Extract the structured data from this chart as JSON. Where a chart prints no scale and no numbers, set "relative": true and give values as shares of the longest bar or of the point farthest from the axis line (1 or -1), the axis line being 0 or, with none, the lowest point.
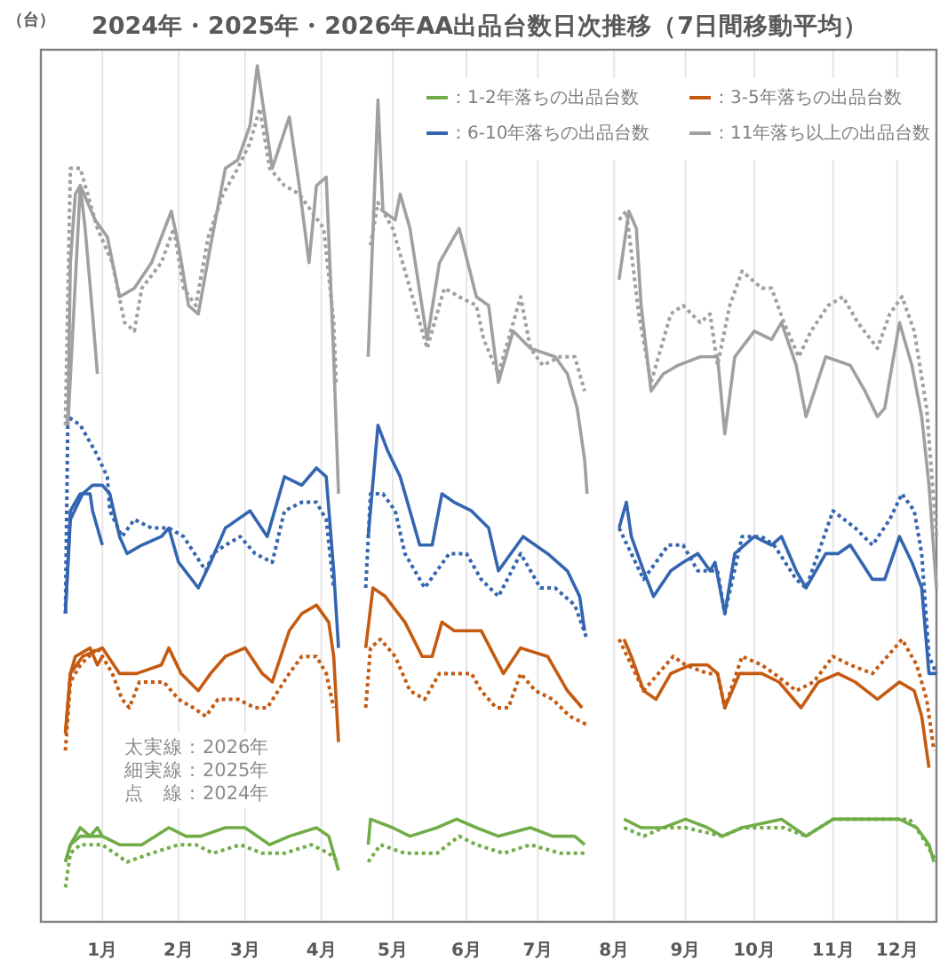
{
  "chart_data": {
    "type": "line",
    "title": "2024年・2025年・2026年AA出品台数日次推移（7日間移動平均）",
    "ylabel": "（台）",
    "relative": true,
    "xlim": [
      "--01-01",
      "--12-31"
    ],
    "xticks": [
      {
        "value": "--01-26",
        "label": "1月"
      },
      {
        "value": "--02-26",
        "label": "2月"
      },
      {
        "value": "--03-25",
        "label": "3月"
      },
      {
        "value": "--04-25",
        "label": "4月"
      },
      {
        "value": "--05-24",
        "label": "5月"
      },
      {
        "value": "--06-23",
        "label": "6月"
      },
      {
        "value": "--07-22",
        "label": "7月"
      },
      {
        "value": "--08-22",
        "label": "8月"
      },
      {
        "value": "--09-20",
        "label": "9月"
      },
      {
        "value": "--10-18",
        "label": "10月"
      },
      {
        "value": "--11-19",
        "label": "11月"
      },
      {
        "value": "--12-15",
        "label": "12月"
      }
    ],
    "grid": "x",
    "legend": "top right",
    "marker": "none",
    "annotations": [
      "太実線：2026年",
      "細実線：2025年",
      "点　線：2024年"
    ],
    "series": [
      {
        "name": "：1-2年落ちの出品台数",
        "color": "#70ad47",
        "line_style": "solid",
        "x": [
          "--01-11",
          "--01-13",
          "--01-17",
          "--01-26",
          "--02-02",
          "--02-11",
          "--02-22",
          "--03-01",
          "--03-07",
          "--03-17",
          "--03-25",
          "--04-04",
          "--04-12",
          "--04-23",
          "--04-28",
          "--05-02"
        ],
        "values": [
          0.07,
          0.09,
          0.1,
          0.1,
          0.09,
          0.09,
          0.11,
          0.1,
          0.1,
          0.11,
          0.11,
          0.09,
          0.1,
          0.11,
          0.1,
          0.06
        ]
      },
      {
        "name": "：3-5年落ちの出品台数",
        "color": "#c55a11",
        "line_style": "solid",
        "x": [
          "--01-11",
          "--01-13",
          "--01-18",
          "--01-26",
          "--02-02",
          "--02-09",
          "--02-19",
          "--02-22",
          "--02-27",
          "--03-06",
          "--03-11",
          "--03-17",
          "--03-25",
          "--04-01",
          "--04-05",
          "--04-12",
          "--04-17",
          "--04-23",
          "--04-28",
          "--04-30",
          "--05-02"
        ],
        "values": [
          0.22,
          0.29,
          0.31,
          0.32,
          0.29,
          0.29,
          0.3,
          0.32,
          0.29,
          0.27,
          0.29,
          0.31,
          0.32,
          0.29,
          0.28,
          0.34,
          0.36,
          0.37,
          0.35,
          0.31,
          0.21
        ]
      },
      {
        "name": "：6-10年落ちの出品台数",
        "color": "#3465b0",
        "line_style": "solid",
        "x": [
          "--01-11",
          "--01-13",
          "--01-18",
          "--01-22",
          "--01-26",
          "--01-29",
          "--02-02",
          "--02-05",
          "--02-11",
          "--02-19",
          "--02-22",
          "--02-26",
          "--03-06",
          "--03-11",
          "--03-17",
          "--03-27",
          "--04-03",
          "--04-08",
          "--04-10",
          "--04-17",
          "--04-23",
          "--04-27",
          "--04-30",
          "--05-02"
        ],
        "values": [
          0.36,
          0.47,
          0.5,
          0.51,
          0.51,
          0.5,
          0.45,
          0.43,
          0.44,
          0.45,
          0.46,
          0.42,
          0.39,
          0.42,
          0.46,
          0.48,
          0.45,
          0.5,
          0.52,
          0.51,
          0.53,
          0.52,
          0.41,
          0.32
        ]
      },
      {
        "name": "：11年落ち以上の出品台数",
        "color": "#a0a0a0",
        "line_style": "solid",
        "x": [
          "--01-12",
          "--01-17",
          "--01-23",
          "--01-28",
          "--02-02",
          "--02-08",
          "--02-15",
          "--02-23",
          "--02-26",
          "--03-02",
          "--03-06",
          "--03-11",
          "--03-17",
          "--03-22",
          "--03-27",
          "--03-30",
          "--04-05",
          "--04-12",
          "--04-16",
          "--04-20",
          "--04-23",
          "--04-27",
          "--04-30",
          "--05-02"
        ],
        "values": [
          0.58,
          0.86,
          0.82,
          0.8,
          0.73,
          0.74,
          0.77,
          0.83,
          0.79,
          0.72,
          0.71,
          0.79,
          0.88,
          0.89,
          0.93,
          1.0,
          0.88,
          0.94,
          0.86,
          0.77,
          0.86,
          0.87,
          0.66,
          0.5
        ]
      },
      {
        "color": "#70ad47",
        "line_style": "solid",
        "x": [
          "--05-14",
          "--05-15",
          "--05-24",
          "--05-31",
          "--06-11",
          "--06-19",
          "--06-27",
          "--07-06",
          "--07-19",
          "--07-28",
          "--08-06",
          "--08-10"
        ],
        "values": [
          0.09,
          0.12,
          0.11,
          0.1,
          0.11,
          0.12,
          0.11,
          0.1,
          0.11,
          0.1,
          0.1,
          0.09
        ]
      },
      {
        "color": "#70ad47",
        "line_style": "solid",
        "x": [
          "--08-26",
          "--09-02",
          "--09-11",
          "--09-20",
          "--09-29",
          "--10-05",
          "--10-13",
          "--10-29",
          "--11-08",
          "--11-19",
          "--11-26",
          "--12-07",
          "--12-16",
          "--12-23",
          "--12-28",
          "--12-30"
        ],
        "values": [
          0.12,
          0.11,
          0.11,
          0.12,
          0.11,
          0.1,
          0.11,
          0.12,
          0.1,
          0.12,
          0.12,
          0.12,
          0.12,
          0.11,
          0.09,
          0.07
        ]
      },
      {
        "color": "#c55a11",
        "line_style": "solid",
        "x": [
          "--05-13",
          "--05-16",
          "--05-21",
          "--05-29",
          "--06-05",
          "--06-09",
          "--06-13",
          "--06-18",
          "--06-24",
          "--06-29",
          "--07-08",
          "--07-15",
          "--07-26",
          "--08-03",
          "--08-09"
        ],
        "values": [
          0.32,
          0.39,
          0.38,
          0.35,
          0.31,
          0.31,
          0.35,
          0.34,
          0.34,
          0.34,
          0.29,
          0.32,
          0.31,
          0.27,
          0.25
        ]
      },
      {
        "color": "#c55a11",
        "line_style": "solid",
        "x": [
          "--08-26",
          "--08-29",
          "--09-03",
          "--09-08",
          "--09-14",
          "--09-22",
          "--09-29",
          "--10-03",
          "--10-06",
          "--10-12",
          "--10-21",
          "--10-28",
          "--11-06",
          "--11-13",
          "--11-21",
          "--11-28",
          "--12-07",
          "--12-16",
          "--12-22",
          "--12-25",
          "--12-28"
        ],
        "values": [
          0.33,
          0.31,
          0.27,
          0.26,
          0.29,
          0.3,
          0.3,
          0.29,
          0.25,
          0.29,
          0.29,
          0.28,
          0.25,
          0.28,
          0.29,
          0.28,
          0.26,
          0.28,
          0.27,
          0.24,
          0.18
        ]
      },
      {
        "color": "#3465b0",
        "line_style": "solid",
        "x": [
          "--05-14",
          "--05-18",
          "--05-22",
          "--05-27",
          "--06-04",
          "--06-09",
          "--06-13",
          "--06-18",
          "--06-25",
          "--07-02",
          "--07-06",
          "--07-16",
          "--07-26",
          "--08-03",
          "--08-08",
          "--08-10"
        ],
        "values": [
          0.45,
          0.58,
          0.55,
          0.52,
          0.44,
          0.44,
          0.5,
          0.49,
          0.48,
          0.46,
          0.41,
          0.45,
          0.43,
          0.41,
          0.38,
          0.34
        ]
      },
      {
        "color": "#3465b0",
        "line_style": "solid",
        "x": [
          "--08-24",
          "--08-27",
          "--08-29",
          "--09-03",
          "--09-07",
          "--09-14",
          "--09-19",
          "--09-25",
          "--09-30",
          "--10-02",
          "--10-06",
          "--10-10",
          "--10-18",
          "--10-25",
          "--10-29",
          "--11-04",
          "--11-08",
          "--11-16",
          "--11-21",
          "--11-26",
          "--12-05",
          "--12-10",
          "--12-16",
          "--12-21",
          "--12-25",
          "--12-28",
          "--12-31"
        ],
        "values": [
          0.46,
          0.49,
          0.45,
          0.41,
          0.38,
          0.41,
          0.42,
          0.43,
          0.41,
          0.42,
          0.36,
          0.43,
          0.45,
          0.44,
          0.45,
          0.41,
          0.39,
          0.43,
          0.43,
          0.44,
          0.4,
          0.4,
          0.45,
          0.42,
          0.39,
          0.29,
          0.29
        ]
      },
      {
        "color": "#a0a0a0",
        "line_style": "solid",
        "x": [
          "--05-14",
          "--05-18",
          "--05-20",
          "--05-25",
          "--05-27",
          "--05-31",
          "--06-07",
          "--06-12",
          "--06-16",
          "--06-20",
          "--06-27",
          "--07-02",
          "--07-06",
          "--07-12",
          "--07-19",
          "--07-29",
          "--08-03",
          "--08-07",
          "--08-10",
          "--08-11"
        ],
        "values": [
          0.66,
          0.96,
          0.83,
          0.82,
          0.85,
          0.81,
          0.68,
          0.77,
          0.79,
          0.81,
          0.73,
          0.72,
          0.63,
          0.69,
          0.67,
          0.66,
          0.64,
          0.6,
          0.54,
          0.5
        ]
      },
      {
        "color": "#a0a0a0",
        "line_style": "solid",
        "x": [
          "--08-24",
          "--08-28",
          "--08-31",
          "--09-02",
          "--09-06",
          "--09-11",
          "--09-17",
          "--09-26",
          "--10-03",
          "--10-06",
          "--10-10",
          "--10-18",
          "--10-25",
          "--10-29",
          "--11-04",
          "--11-08",
          "--11-16",
          "--11-26",
          "--12-02",
          "--12-07",
          "--12-10",
          "--12-16",
          "--12-21",
          "--12-25",
          "--12-28",
          "--12-31"
        ],
        "values": [
          0.75,
          0.83,
          0.81,
          0.72,
          0.62,
          0.64,
          0.65,
          0.66,
          0.66,
          0.57,
          0.66,
          0.69,
          0.68,
          0.7,
          0.65,
          0.59,
          0.66,
          0.65,
          0.62,
          0.59,
          0.6,
          0.7,
          0.65,
          0.59,
          0.51,
          0.39
        ]
      },
      {
        "color": "#70ad47",
        "line_style": "dotted",
        "x": [
          "--01-11",
          "--01-13",
          "--01-17",
          "--01-26",
          "--02-05",
          "--02-15",
          "--02-26",
          "--03-05",
          "--03-12",
          "--03-23",
          "--04-01",
          "--04-10",
          "--04-21",
          "--04-28",
          "--05-02"
        ],
        "values": [
          0.04,
          0.08,
          0.09,
          0.09,
          0.07,
          0.08,
          0.09,
          0.09,
          0.08,
          0.09,
          0.08,
          0.08,
          0.09,
          0.08,
          0.07
        ]
      },
      {
        "color": "#70ad47",
        "line_style": "dotted",
        "x": [
          "--05-14",
          "--05-19",
          "--05-29",
          "--06-11",
          "--06-20",
          "--06-27",
          "--07-08",
          "--07-19",
          "--07-31",
          "--08-10"
        ],
        "values": [
          0.07,
          0.09,
          0.08,
          0.08,
          0.1,
          0.09,
          0.08,
          0.09,
          0.08,
          0.08
        ]
      },
      {
        "color": "#70ad47",
        "line_style": "dotted",
        "x": [
          "--08-26",
          "--09-03",
          "--09-11",
          "--09-20",
          "--10-05",
          "--10-13",
          "--10-30",
          "--11-08",
          "--11-19",
          "--11-28",
          "--12-12",
          "--12-20",
          "--12-25",
          "--12-31"
        ],
        "values": [
          0.11,
          0.1,
          0.11,
          0.11,
          0.1,
          0.11,
          0.11,
          0.1,
          0.12,
          0.12,
          0.12,
          0.12,
          0.1,
          0.07
        ]
      },
      {
        "color": "#c55a11",
        "line_style": "dotted",
        "x": [
          "--01-11",
          "--01-13",
          "--01-17",
          "--01-24",
          "--01-30",
          "--02-03",
          "--02-06",
          "--02-10",
          "--02-20",
          "--02-26",
          "--03-04",
          "--03-09",
          "--03-14",
          "--03-22",
          "--03-29",
          "--04-03",
          "--04-12",
          "--04-17",
          "--04-23",
          "--04-27",
          "--04-30"
        ],
        "values": [
          0.2,
          0.28,
          0.3,
          0.32,
          0.29,
          0.26,
          0.25,
          0.28,
          0.28,
          0.26,
          0.25,
          0.24,
          0.26,
          0.26,
          0.25,
          0.25,
          0.29,
          0.31,
          0.31,
          0.29,
          0.25
        ]
      },
      {
        "color": "#c55a11",
        "line_style": "dotted",
        "x": [
          "--05-13",
          "--05-15",
          "--05-19",
          "--05-25",
          "--05-31",
          "--06-06",
          "--06-12",
          "--06-20",
          "--06-25",
          "--06-29",
          "--07-05",
          "--07-10",
          "--07-15",
          "--07-21",
          "--07-28",
          "--08-04",
          "--08-11"
        ],
        "values": [
          0.25,
          0.32,
          0.33,
          0.31,
          0.27,
          0.26,
          0.29,
          0.29,
          0.29,
          0.27,
          0.25,
          0.25,
          0.29,
          0.27,
          0.26,
          0.24,
          0.23
        ]
      },
      {
        "color": "#c55a11",
        "line_style": "dotted",
        "x": [
          "--08-24",
          "--08-29",
          "--09-03",
          "--09-09",
          "--09-15",
          "--09-20",
          "--09-29",
          "--10-03",
          "--10-06",
          "--10-13",
          "--10-21",
          "--10-26",
          "--11-04",
          "--11-11",
          "--11-19",
          "--11-26",
          "--12-05",
          "--12-14",
          "--12-17",
          "--12-23",
          "--12-27",
          "--12-30"
        ],
        "values": [
          0.33,
          0.3,
          0.27,
          0.29,
          0.31,
          0.3,
          0.29,
          0.29,
          0.25,
          0.31,
          0.3,
          0.29,
          0.27,
          0.28,
          0.31,
          0.3,
          0.29,
          0.32,
          0.33,
          0.3,
          0.26,
          0.2
        ]
      },
      {
        "color": "#3465b0",
        "line_style": "dotted",
        "x": [
          "--01-11",
          "--01-12",
          "--01-17",
          "--01-23",
          "--01-28",
          "--01-29",
          "--02-03",
          "--02-08",
          "--02-15",
          "--02-22",
          "--02-28",
          "--03-09",
          "--03-12",
          "--03-17",
          "--03-23",
          "--03-29",
          "--04-05",
          "--04-10",
          "--04-17",
          "--04-23",
          "--04-27",
          "--04-30"
        ],
        "values": [
          0.36,
          0.59,
          0.58,
          0.55,
          0.52,
          0.48,
          0.45,
          0.47,
          0.46,
          0.46,
          0.45,
          0.41,
          0.43,
          0.44,
          0.45,
          0.43,
          0.42,
          0.48,
          0.49,
          0.49,
          0.47,
          0.39
        ]
      },
      {
        "color": "#3465b0",
        "line_style": "dotted",
        "x": [
          "--05-13",
          "--05-15",
          "--05-20",
          "--05-25",
          "--05-29",
          "--06-06",
          "--06-11",
          "--06-16",
          "--06-23",
          "--06-29",
          "--07-06",
          "--07-15",
          "--07-23",
          "--07-29",
          "--08-06",
          "--08-11"
        ],
        "values": [
          0.39,
          0.5,
          0.5,
          0.48,
          0.43,
          0.39,
          0.41,
          0.43,
          0.43,
          0.4,
          0.38,
          0.43,
          0.39,
          0.39,
          0.37,
          0.33
        ]
      },
      {
        "color": "#3465b0",
        "line_style": "dotted",
        "x": [
          "--08-24",
          "--08-29",
          "--09-03",
          "--09-13",
          "--09-19",
          "--09-25",
          "--10-03",
          "--10-06",
          "--10-13",
          "--10-21",
          "--10-26",
          "--11-04",
          "--11-08",
          "--11-19",
          "--11-28",
          "--12-05",
          "--12-12",
          "--12-17",
          "--12-22",
          "--12-25",
          "--12-28",
          "--12-31"
        ],
        "values": [
          0.46,
          0.43,
          0.4,
          0.44,
          0.44,
          0.41,
          0.41,
          0.36,
          0.45,
          0.45,
          0.44,
          0.4,
          0.39,
          0.48,
          0.46,
          0.44,
          0.47,
          0.5,
          0.48,
          0.43,
          0.31,
          0.29
        ]
      },
      {
        "color": "#a0a0a0",
        "line_style": "dotted",
        "x": [
          "--01-11",
          "--01-13",
          "--01-17",
          "--01-21",
          "--01-24",
          "--01-30",
          "--02-04",
          "--02-08",
          "--02-11",
          "--02-19",
          "--02-24",
          "--02-28",
          "--03-05",
          "--03-10",
          "--03-16",
          "--03-22",
          "--03-27",
          "--03-31",
          "--04-04",
          "--04-10",
          "--04-16",
          "--04-21",
          "--04-26",
          "--04-30",
          "--05-01"
        ],
        "values": [
          0.58,
          0.88,
          0.88,
          0.84,
          0.81,
          0.77,
          0.7,
          0.69,
          0.74,
          0.77,
          0.81,
          0.74,
          0.72,
          0.8,
          0.85,
          0.88,
          0.91,
          0.95,
          0.88,
          0.86,
          0.85,
          0.83,
          0.81,
          0.7,
          0.63
        ]
      },
      {
        "color": "#a0a0a0",
        "line_style": "dotted",
        "x": [
          "--05-15",
          "--05-18",
          "--05-24",
          "--05-31",
          "--06-07",
          "--06-11",
          "--06-14",
          "--06-20",
          "--06-27",
          "--06-30",
          "--07-06",
          "--07-15",
          "--07-19",
          "--07-24",
          "--07-31",
          "--08-06",
          "--08-10"
        ],
        "values": [
          0.79,
          0.84,
          0.81,
          0.74,
          0.67,
          0.71,
          0.74,
          0.73,
          0.72,
          0.68,
          0.64,
          0.73,
          0.67,
          0.65,
          0.66,
          0.66,
          0.62
        ]
      },
      {
        "color": "#a0a0a0",
        "line_style": "dotted",
        "x": [
          "--08-24",
          "--08-27",
          "--09-01",
          "--09-06",
          "--09-14",
          "--09-19",
          "--09-26",
          "--09-30",
          "--10-03",
          "--10-08",
          "--10-13",
          "--10-21",
          "--10-25",
          "--10-30",
          "--11-05",
          "--11-10",
          "--11-17",
          "--11-23",
          "--11-29",
          "--12-07",
          "--12-12",
          "--12-17",
          "--12-22",
          "--12-27",
          "--12-31"
        ],
        "values": [
          0.82,
          0.83,
          0.71,
          0.63,
          0.71,
          0.72,
          0.7,
          0.71,
          0.65,
          0.72,
          0.76,
          0.74,
          0.74,
          0.7,
          0.66,
          0.69,
          0.72,
          0.73,
          0.7,
          0.67,
          0.71,
          0.73,
          0.69,
          0.6,
          0.45
        ]
      },
      {
        "color": "#70ad47",
        "line_style": "solid",
        "x": [
          "--01-11",
          "--01-13",
          "--01-17",
          "--01-21",
          "--01-24",
          "--01-26"
        ],
        "values": [
          0.07,
          0.09,
          0.11,
          0.1,
          0.11,
          0.1
        ]
      },
      {
        "color": "#c55a11",
        "line_style": "solid",
        "x": [
          "--01-11",
          "--01-13",
          "--01-15",
          "--01-21",
          "--01-24",
          "--01-26"
        ],
        "values": [
          0.22,
          0.29,
          0.31,
          0.32,
          0.3,
          0.31
        ]
      },
      {
        "color": "#3465b0",
        "line_style": "solid",
        "x": [
          "--01-11",
          "--01-13",
          "--01-17",
          "--01-21",
          "--01-22",
          "--01-26"
        ],
        "values": [
          0.36,
          0.48,
          0.5,
          0.5,
          0.48,
          0.44
        ]
      },
      {
        "color": "#a0a0a0",
        "line_style": "solid",
        "x": [
          "--01-12",
          "--01-13",
          "--01-15",
          "--01-17",
          "--01-19",
          "--01-22",
          "--01-24"
        ],
        "values": [
          0.58,
          0.77,
          0.85,
          0.86,
          0.81,
          0.71,
          0.64
        ]
      }
    ]
  }
}
